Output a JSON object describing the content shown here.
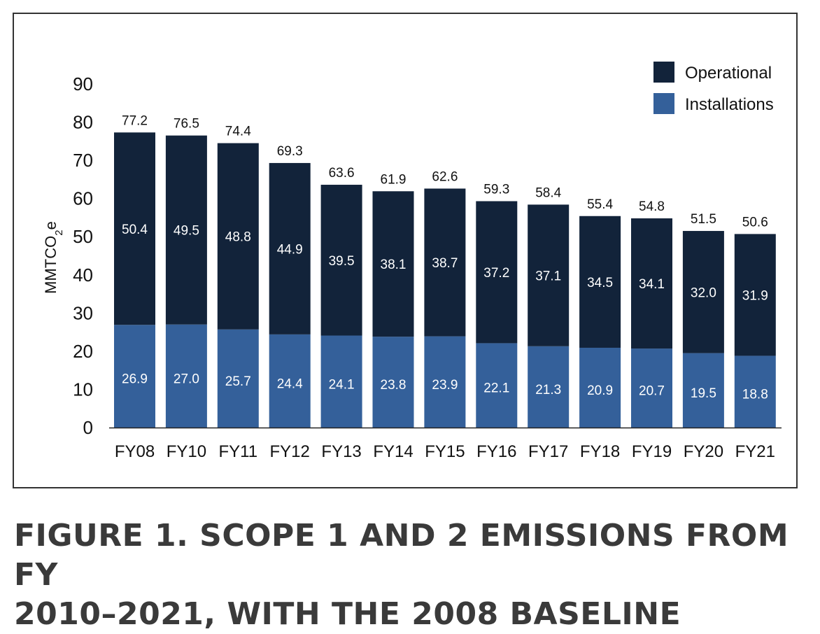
{
  "chart_data": {
    "type": "bar",
    "stacked": true,
    "ylabel": "MMTCO",
    "ylabel_sub": "2",
    "ylabel_suffix": "e",
    "ylim": [
      0,
      90
    ],
    "yticks": [
      "0",
      "10",
      "20",
      "30",
      "40",
      "50",
      "60",
      "70",
      "80",
      "90"
    ],
    "categories": [
      "FY08",
      "FY10",
      "FY11",
      "FY12",
      "FY13",
      "FY14",
      "FY15",
      "FY16",
      "FY17",
      "FY18",
      "FY19",
      "FY20",
      "FY21"
    ],
    "totals": [
      "77.2",
      "76.5",
      "74.4",
      "69.3",
      "63.6",
      "61.9",
      "62.6",
      "59.3",
      "58.4",
      "55.4",
      "54.8",
      "51.5",
      "50.6"
    ],
    "series": [
      {
        "name": "Installations",
        "color": "#34609a",
        "values": [
          26.9,
          27.0,
          25.7,
          24.4,
          24.1,
          23.8,
          23.9,
          22.1,
          21.3,
          20.9,
          20.7,
          19.5,
          18.8
        ],
        "labels": [
          "26.9",
          "27.0",
          "25.7",
          "24.4",
          "24.1",
          "23.8",
          "23.9",
          "22.1",
          "21.3",
          "20.9",
          "20.7",
          "19.5",
          "18.8"
        ]
      },
      {
        "name": "Operational",
        "color": "#12233a",
        "values": [
          50.4,
          49.5,
          48.8,
          44.9,
          39.5,
          38.1,
          38.7,
          37.2,
          37.1,
          34.5,
          34.1,
          32.0,
          31.9
        ],
        "labels": [
          "50.4",
          "49.5",
          "48.8",
          "44.9",
          "39.5",
          "38.1",
          "38.7",
          "37.2",
          "37.1",
          "34.5",
          "34.1",
          "32.0",
          "31.9"
        ]
      }
    ],
    "legend": {
      "position": "top-right",
      "items": [
        "Operational",
        "Installations"
      ]
    }
  },
  "caption": {
    "line1": "FIGURE 1. SCOPE 1 AND 2 EMISSIONS FROM FY",
    "line2": "2010–2021, WITH THE 2008 BASELINE"
  }
}
